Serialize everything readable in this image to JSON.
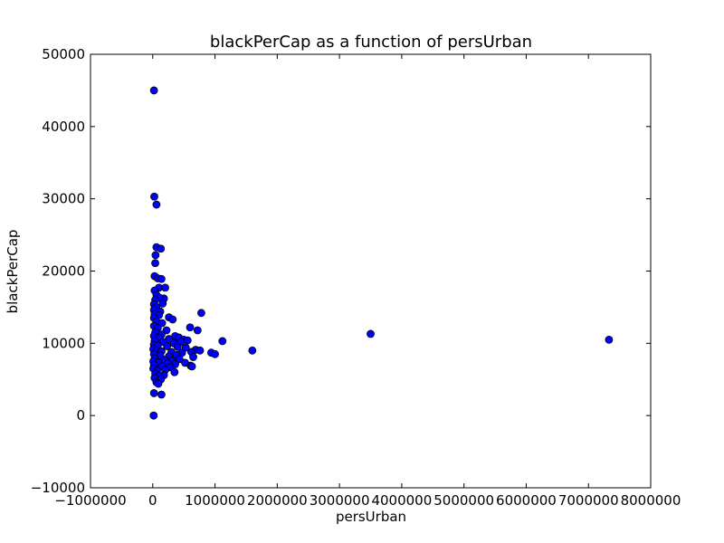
{
  "chart_data": {
    "type": "scatter",
    "title": "blackPerCap as a function of persUrban",
    "xlabel": "persUrban",
    "ylabel": "blackPerCap",
    "xlim": [
      -1000000,
      8000000
    ],
    "ylim": [
      -10000,
      50000
    ],
    "xticks": [
      -1000000,
      0,
      1000000,
      2000000,
      3000000,
      4000000,
      5000000,
      6000000,
      7000000,
      8000000
    ],
    "yticks": [
      -10000,
      0,
      10000,
      20000,
      30000,
      40000,
      50000
    ],
    "xtick_labels": [
      "−1000000",
      "0",
      "1000000",
      "2000000",
      "3000000",
      "4000000",
      "5000000",
      "6000000",
      "7000000",
      "8000000"
    ],
    "ytick_labels": [
      "−10000",
      "0",
      "10000",
      "20000",
      "30000",
      "40000",
      "50000"
    ],
    "grid": false,
    "colors": {
      "point_fill": "#0000ff",
      "point_edge": "#000000"
    },
    "points": [
      [
        20000,
        45000
      ],
      [
        25000,
        30300
      ],
      [
        60000,
        29200
      ],
      [
        60000,
        23300
      ],
      [
        130000,
        23100
      ],
      [
        45000,
        22200
      ],
      [
        40000,
        21100
      ],
      [
        30000,
        19300
      ],
      [
        80000,
        19000
      ],
      [
        140000,
        18900
      ],
      [
        100000,
        17700
      ],
      [
        200000,
        17700
      ],
      [
        30000,
        17300
      ],
      [
        60000,
        16700
      ],
      [
        180000,
        16200
      ],
      [
        110000,
        16300
      ],
      [
        40000,
        16000
      ],
      [
        20000,
        15400
      ],
      [
        160000,
        15500
      ],
      [
        60000,
        15000
      ],
      [
        20000,
        14600
      ],
      [
        120000,
        14400
      ],
      [
        780000,
        14200
      ],
      [
        30000,
        14000
      ],
      [
        100000,
        13900
      ],
      [
        260000,
        13600
      ],
      [
        320000,
        13300
      ],
      [
        20000,
        13500
      ],
      [
        60000,
        13000
      ],
      [
        150000,
        12800
      ],
      [
        600000,
        12200
      ],
      [
        720000,
        11800
      ],
      [
        20000,
        12400
      ],
      [
        80000,
        12100
      ],
      [
        220000,
        11800
      ],
      [
        40000,
        11500
      ],
      [
        140000,
        11200
      ],
      [
        3500000,
        11300
      ],
      [
        360000,
        11000
      ],
      [
        420000,
        10800
      ],
      [
        20000,
        11000
      ],
      [
        100000,
        10700
      ],
      [
        260000,
        10600
      ],
      [
        500000,
        10500
      ],
      [
        560000,
        10400
      ],
      [
        1120000,
        10300
      ],
      [
        7330000,
        10500
      ],
      [
        30000,
        10300
      ],
      [
        160000,
        10200
      ],
      [
        340000,
        10000
      ],
      [
        450000,
        10200
      ],
      [
        20000,
        9800
      ],
      [
        80000,
        9700
      ],
      [
        230000,
        9600
      ],
      [
        400000,
        9500
      ],
      [
        530000,
        9400
      ],
      [
        690000,
        9100
      ],
      [
        760000,
        9000
      ],
      [
        1600000,
        9000
      ],
      [
        10000,
        9200
      ],
      [
        60000,
        9000
      ],
      [
        140000,
        8900
      ],
      [
        300000,
        8800
      ],
      [
        470000,
        8700
      ],
      [
        620000,
        8800
      ],
      [
        940000,
        8700
      ],
      [
        1000000,
        8500
      ],
      [
        20000,
        8500
      ],
      [
        120000,
        8300
      ],
      [
        260000,
        8200
      ],
      [
        380000,
        8400
      ],
      [
        650000,
        8100
      ],
      [
        30000,
        7900
      ],
      [
        190000,
        7700
      ],
      [
        310000,
        7600
      ],
      [
        430000,
        7800
      ],
      [
        10000,
        7500
      ],
      [
        90000,
        7300
      ],
      [
        240000,
        7200
      ],
      [
        360000,
        7100
      ],
      [
        520000,
        7300
      ],
      [
        610000,
        6900
      ],
      [
        630000,
        6800
      ],
      [
        20000,
        7000
      ],
      [
        150000,
        6800
      ],
      [
        280000,
        6700
      ],
      [
        10000,
        6500
      ],
      [
        70000,
        6200
      ],
      [
        200000,
        6300
      ],
      [
        350000,
        6000
      ],
      [
        40000,
        5800
      ],
      [
        180000,
        5600
      ],
      [
        100000,
        5500
      ],
      [
        30000,
        5200
      ],
      [
        130000,
        5000
      ],
      [
        60000,
        4600
      ],
      [
        90000,
        4400
      ],
      [
        20000,
        3100
      ],
      [
        140000,
        2900
      ],
      [
        15000,
        0
      ]
    ]
  }
}
